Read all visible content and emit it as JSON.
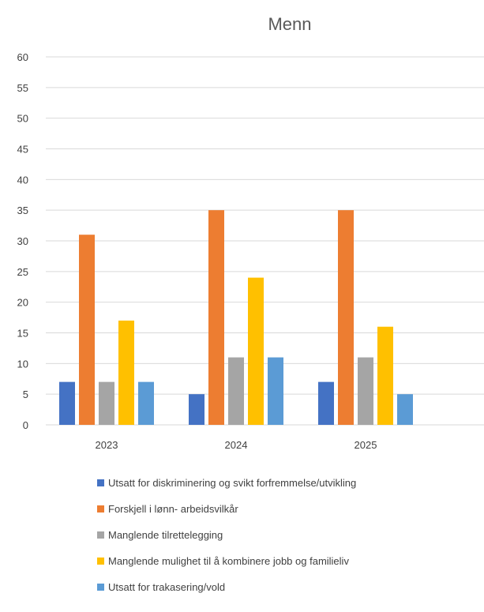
{
  "chart_data": {
    "type": "bar",
    "title": "Menn",
    "xlabel": "",
    "ylabel": "",
    "categories": [
      "2023",
      "2024",
      "2025"
    ],
    "ylim": [
      0,
      60
    ],
    "yticks": [
      0,
      5,
      10,
      15,
      20,
      25,
      30,
      35,
      40,
      45,
      50,
      55,
      60
    ],
    "grid": true,
    "legend_position": "bottom",
    "series": [
      {
        "name": "Utsatt for diskriminering og svikt forfremmelse/utvikling",
        "color": "#4472c4",
        "values": [
          7,
          5,
          7
        ]
      },
      {
        "name": "Forskjell i lønn- arbeidsvilkår",
        "color": "#ed7d31",
        "values": [
          31,
          35,
          35
        ]
      },
      {
        "name": "Manglende tilrettelegging",
        "color": "#a5a5a5",
        "values": [
          7,
          11,
          11
        ]
      },
      {
        "name": "Manglende mulighet til å kombinere jobb og familieliv",
        "color": "#ffc000",
        "values": [
          17,
          24,
          16
        ]
      },
      {
        "name": "Utsatt for trakasering/vold",
        "color": "#5b9bd5",
        "values": [
          7,
          11,
          5
        ]
      }
    ]
  }
}
